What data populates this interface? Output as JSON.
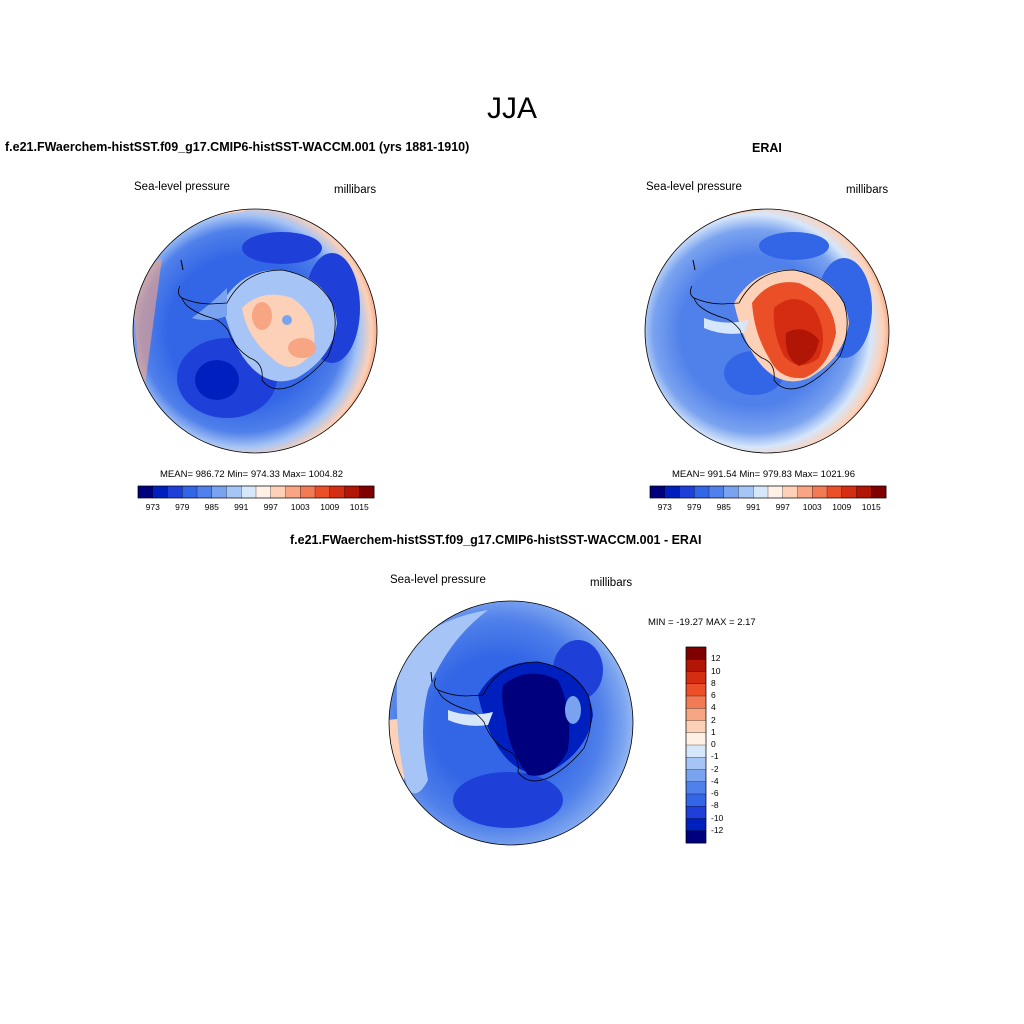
{
  "figure": {
    "title": "JJA"
  },
  "colors": {
    "absolute_scale": [
      "#00007f",
      "#001fbf",
      "#1e40d8",
      "#3366e6",
      "#5080ea",
      "#7aa3ef",
      "#a6c4f5",
      "#d6e6fb",
      "#fff0e6",
      "#fcd1b8",
      "#f8a583",
      "#f27b56",
      "#ea4f27",
      "#d42d11",
      "#b01505",
      "#7f0000"
    ],
    "diff_scale_bottom_to_top": [
      "#00007f",
      "#001fbf",
      "#1e40d8",
      "#3366e6",
      "#5080ea",
      "#7aa3ef",
      "#a6c4f5",
      "#d6e6fb",
      "#fff0e6",
      "#fcd1b8",
      "#f8a583",
      "#f27b56",
      "#ea4f27",
      "#d42d11",
      "#b01505",
      "#7f0000"
    ],
    "coastline": "#000000"
  },
  "panels": {
    "model": {
      "title": "f.e21.FWaerchem-histSST.f09_g17.CMIP6-histSST-WACCM.001 (yrs 1881-1910)",
      "left_label": "Sea-level pressure",
      "right_label": "millibars",
      "stats": "MEAN= 986.72  Min= 974.33  Max= 1004.82",
      "colorbar_ticks": [
        "973",
        "979",
        "985",
        "991",
        "997",
        "1003",
        "1009",
        "1015"
      ]
    },
    "obs": {
      "title": "ERAI",
      "left_label": "Sea-level pressure",
      "right_label": "millibars",
      "stats": "MEAN= 991.54  Min= 979.83  Max= 1021.96",
      "colorbar_ticks": [
        "973",
        "979",
        "985",
        "991",
        "997",
        "1003",
        "1009",
        "1015"
      ]
    },
    "diff": {
      "title": "f.e21.FWaerchem-histSST.f09_g17.CMIP6-histSST-WACCM.001 - ERAI",
      "left_label": "Sea-level pressure",
      "right_label": "millibars",
      "stats": "MIN = -19.27 MAX =   2.17",
      "colorbar_ticks_top_to_bottom": [
        "12",
        "10",
        "8",
        "6",
        "4",
        "2",
        "1",
        "0",
        "-1",
        "-2",
        "-4",
        "-6",
        "-8",
        "-10",
        "-12"
      ]
    }
  }
}
